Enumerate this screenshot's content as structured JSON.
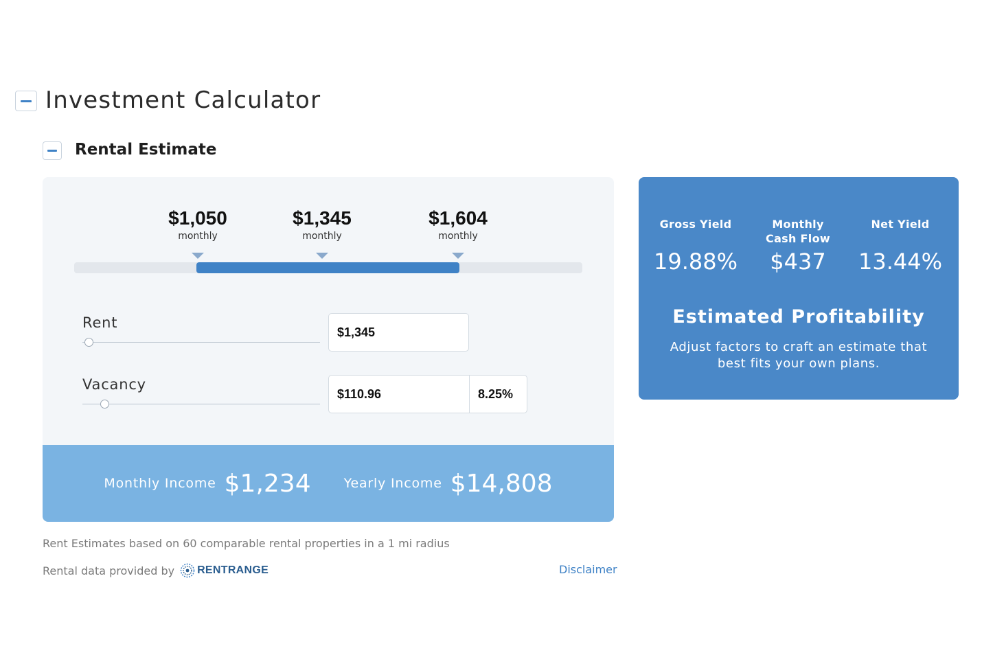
{
  "header": {
    "title": "Investment Calculator"
  },
  "section": {
    "title": "Rental Estimate"
  },
  "rent_range": {
    "low": {
      "value": "$1,050",
      "period": "monthly"
    },
    "mid": {
      "value": "$1,345",
      "period": "monthly"
    },
    "high": {
      "value": "$1,604",
      "period": "monthly"
    }
  },
  "fields": {
    "rent": {
      "label": "Rent",
      "value": "$1,345"
    },
    "vacancy": {
      "label": "Vacancy",
      "value": "$110.96",
      "percent": "8.25%"
    }
  },
  "income": {
    "monthly_label": "Monthly Income",
    "monthly_value": "$1,234",
    "yearly_label": "Yearly Income",
    "yearly_value": "$14,808"
  },
  "footer": {
    "footnote": "Rent Estimates based on 60 comparable rental properties in a 1 mi radius",
    "provider_prefix": "Rental data provided by",
    "provider_name": "RENTRANGE",
    "disclaimer": "Disclaimer"
  },
  "profitability": {
    "metrics": [
      {
        "label": "Gross Yield",
        "value": "19.88%"
      },
      {
        "label": "Monthly Cash Flow",
        "value": "$437"
      },
      {
        "label": "Net Yield",
        "value": "13.44%"
      }
    ],
    "title": "Estimated Profitability",
    "description": "Adjust factors to craft an estimate that best fits your own plans."
  },
  "colors": {
    "accent": "#3f82c6",
    "card_blue": "#4a88c8",
    "income_blue": "#7ab3e2"
  }
}
